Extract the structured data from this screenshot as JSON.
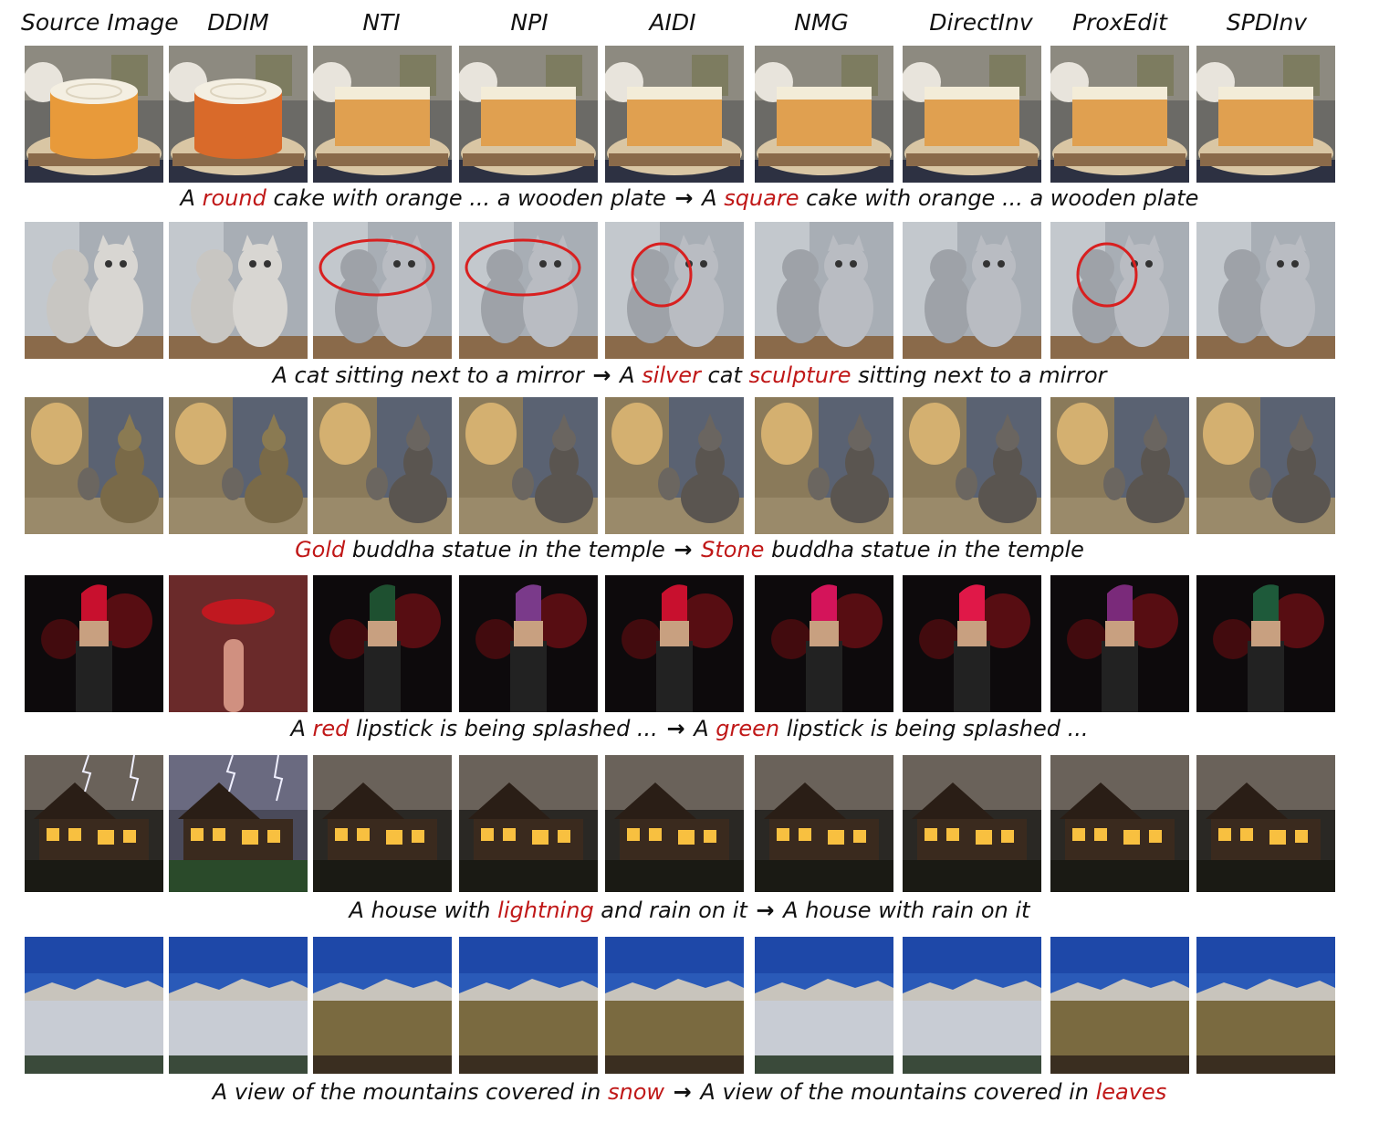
{
  "columns": [
    "Source Image",
    "DDIM",
    "NTI",
    "NPI",
    "AIDI",
    "NMG",
    "DirectInv",
    "ProxEdit",
    "SPDInv"
  ],
  "highlight_color": "#c01818",
  "rows": [
    {
      "theme": "cake",
      "caption": [
        {
          "t": "A ",
          "h": false
        },
        {
          "t": "round",
          "h": true
        },
        {
          "t": " cake with orange ... a wooden plate ",
          "h": false
        },
        {
          "t": "→",
          "a": true
        },
        {
          "t": " A ",
          "h": false
        },
        {
          "t": "square",
          "h": true
        },
        {
          "t": " cake with orange ... a wooden plate",
          "h": false
        }
      ]
    },
    {
      "theme": "cat",
      "caption": [
        {
          "t": "A cat sitting next to a mirror ",
          "h": false
        },
        {
          "t": "→",
          "a": true
        },
        {
          "t": " A ",
          "h": false
        },
        {
          "t": "silver",
          "h": true
        },
        {
          "t": " cat ",
          "h": false
        },
        {
          "t": "sculpture",
          "h": true
        },
        {
          "t": " sitting next to a mirror",
          "h": false
        }
      ]
    },
    {
      "theme": "buddha",
      "caption": [
        {
          "t": "Gold",
          "h": true
        },
        {
          "t": " buddha statue in the temple ",
          "h": false
        },
        {
          "t": "→",
          "a": true
        },
        {
          "t": " ",
          "h": false
        },
        {
          "t": "Stone",
          "h": true
        },
        {
          "t": " buddha statue in the temple",
          "h": false
        }
      ]
    },
    {
      "theme": "lipstick",
      "caption": [
        {
          "t": "A ",
          "h": false
        },
        {
          "t": "red",
          "h": true
        },
        {
          "t": " lipstick is being splashed ... ",
          "h": false
        },
        {
          "t": "→",
          "a": true
        },
        {
          "t": " A ",
          "h": false
        },
        {
          "t": "green",
          "h": true
        },
        {
          "t": " lipstick is being splashed ...",
          "h": false
        }
      ]
    },
    {
      "theme": "house",
      "caption": [
        {
          "t": "A house with ",
          "h": false
        },
        {
          "t": "lightning",
          "h": true
        },
        {
          "t": " and rain on it ",
          "h": false
        },
        {
          "t": "→",
          "a": true
        },
        {
          "t": " A house with rain on it",
          "h": false
        }
      ]
    },
    {
      "theme": "mountain",
      "caption": [
        {
          "t": "A view of the mountains covered in ",
          "h": false
        },
        {
          "t": "snow",
          "h": true
        },
        {
          "t": " ",
          "h": false
        },
        {
          "t": "→",
          "a": true
        },
        {
          "t": " A view of the mountains covered in ",
          "h": false
        },
        {
          "t": "leaves",
          "h": true
        }
      ]
    }
  ]
}
